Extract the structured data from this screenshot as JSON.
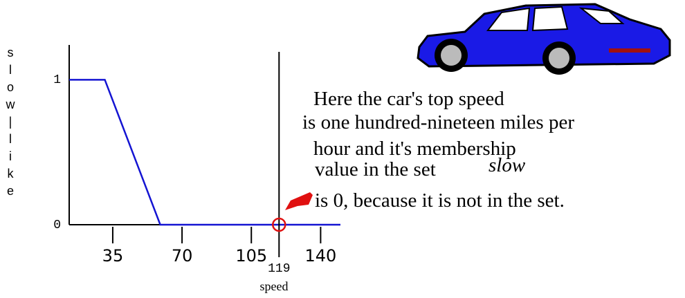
{
  "chart_data": {
    "type": "line",
    "y_label": "slow|like",
    "x_label": "speed",
    "x": [
      13,
      31,
      59,
      150
    ],
    "values": [
      1,
      1,
      0,
      0
    ],
    "color": "#1414d2",
    "xlim": [
      13,
      150
    ],
    "ylim": [
      0,
      1.24
    ],
    "xticks": [
      35,
      70,
      105,
      140
    ],
    "yticks": [
      0,
      1
    ],
    "highlight": {
      "x": 119,
      "y": 0,
      "color": "#e01010"
    },
    "text_lines": [
      "Here the car's top speed",
      "is one hundred-nineteen miles per",
      "hour and it's membership",
      "value in the set",
      "is 0, because it is not in the set."
    ],
    "emphasis": "slow"
  }
}
